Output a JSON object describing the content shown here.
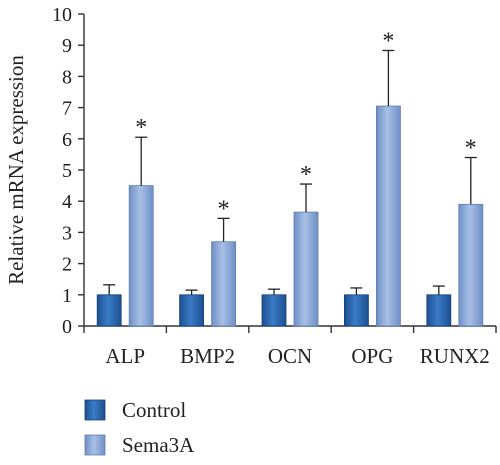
{
  "chart_data": {
    "type": "bar",
    "ylabel": "Relative mRNA expression",
    "xlabel": "",
    "ylim": [
      0,
      10
    ],
    "yticks": [
      0,
      1,
      2,
      3,
      4,
      5,
      6,
      7,
      8,
      9,
      10
    ],
    "categories": [
      "ALP",
      "BMP2",
      "OCN",
      "OPG",
      "RUNX2"
    ],
    "series": [
      {
        "name": "Control",
        "values": [
          1.0,
          1.0,
          1.0,
          1.0,
          1.0
        ],
        "errors": [
          0.32,
          0.15,
          0.18,
          0.22,
          0.28
        ],
        "color": "#2f6db5"
      },
      {
        "name": "Sema3A",
        "values": [
          4.5,
          2.7,
          3.65,
          7.05,
          3.9
        ],
        "errors": [
          1.55,
          0.75,
          0.9,
          1.78,
          1.5
        ],
        "color": "#8aa7d6"
      }
    ],
    "annotations": [
      "*",
      "*",
      "*",
      "*",
      "*"
    ],
    "legend_position": "bottom-left",
    "grid": false
  }
}
